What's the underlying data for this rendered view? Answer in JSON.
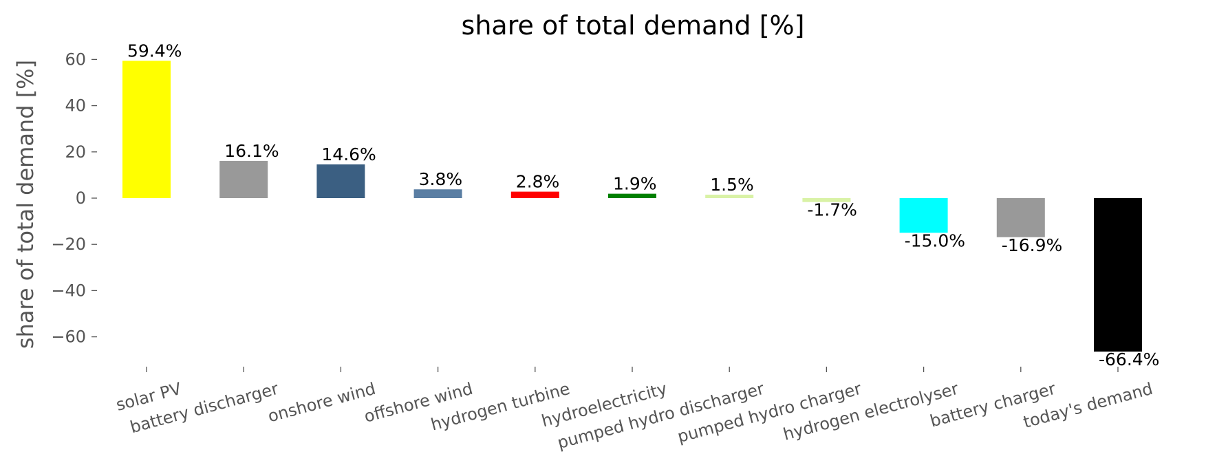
{
  "chart_data": {
    "type": "bar",
    "title": "share of total demand [%]",
    "ylabel": "share of total demand [%]",
    "xlabel": "",
    "ylim": [
      -74,
      64
    ],
    "yticks": [
      -60,
      -40,
      -20,
      0,
      20,
      40,
      60
    ],
    "ytick_labels": [
      "−60",
      "−40",
      "−20",
      "0",
      "20",
      "40",
      "60"
    ],
    "grid": false,
    "categories": [
      "solar PV",
      "battery discharger",
      "onshore wind",
      "offshore wind",
      "hydrogen turbine",
      "hydroelectricity",
      "pumped hydro discharger",
      "pumped hydro charger",
      "hydrogen electrolyser",
      "battery charger",
      "today's demand"
    ],
    "values": [
      59.4,
      16.1,
      14.6,
      3.8,
      2.8,
      1.9,
      1.5,
      -1.7,
      -15.0,
      -16.9,
      -66.4
    ],
    "value_labels": [
      "59.4%",
      "16.1%",
      "14.6%",
      "3.8%",
      "2.8%",
      "1.9%",
      "1.5%",
      "-1.7%",
      "-15.0%",
      "-16.9%",
      "-66.4%"
    ],
    "colors": [
      "#ffff00",
      "#999999",
      "#3b5f82",
      "#5a7ea3",
      "#ff0000",
      "#008000",
      "#d9f2a6",
      "#d9f2a6",
      "#00ffff",
      "#999999",
      "#000000"
    ]
  }
}
